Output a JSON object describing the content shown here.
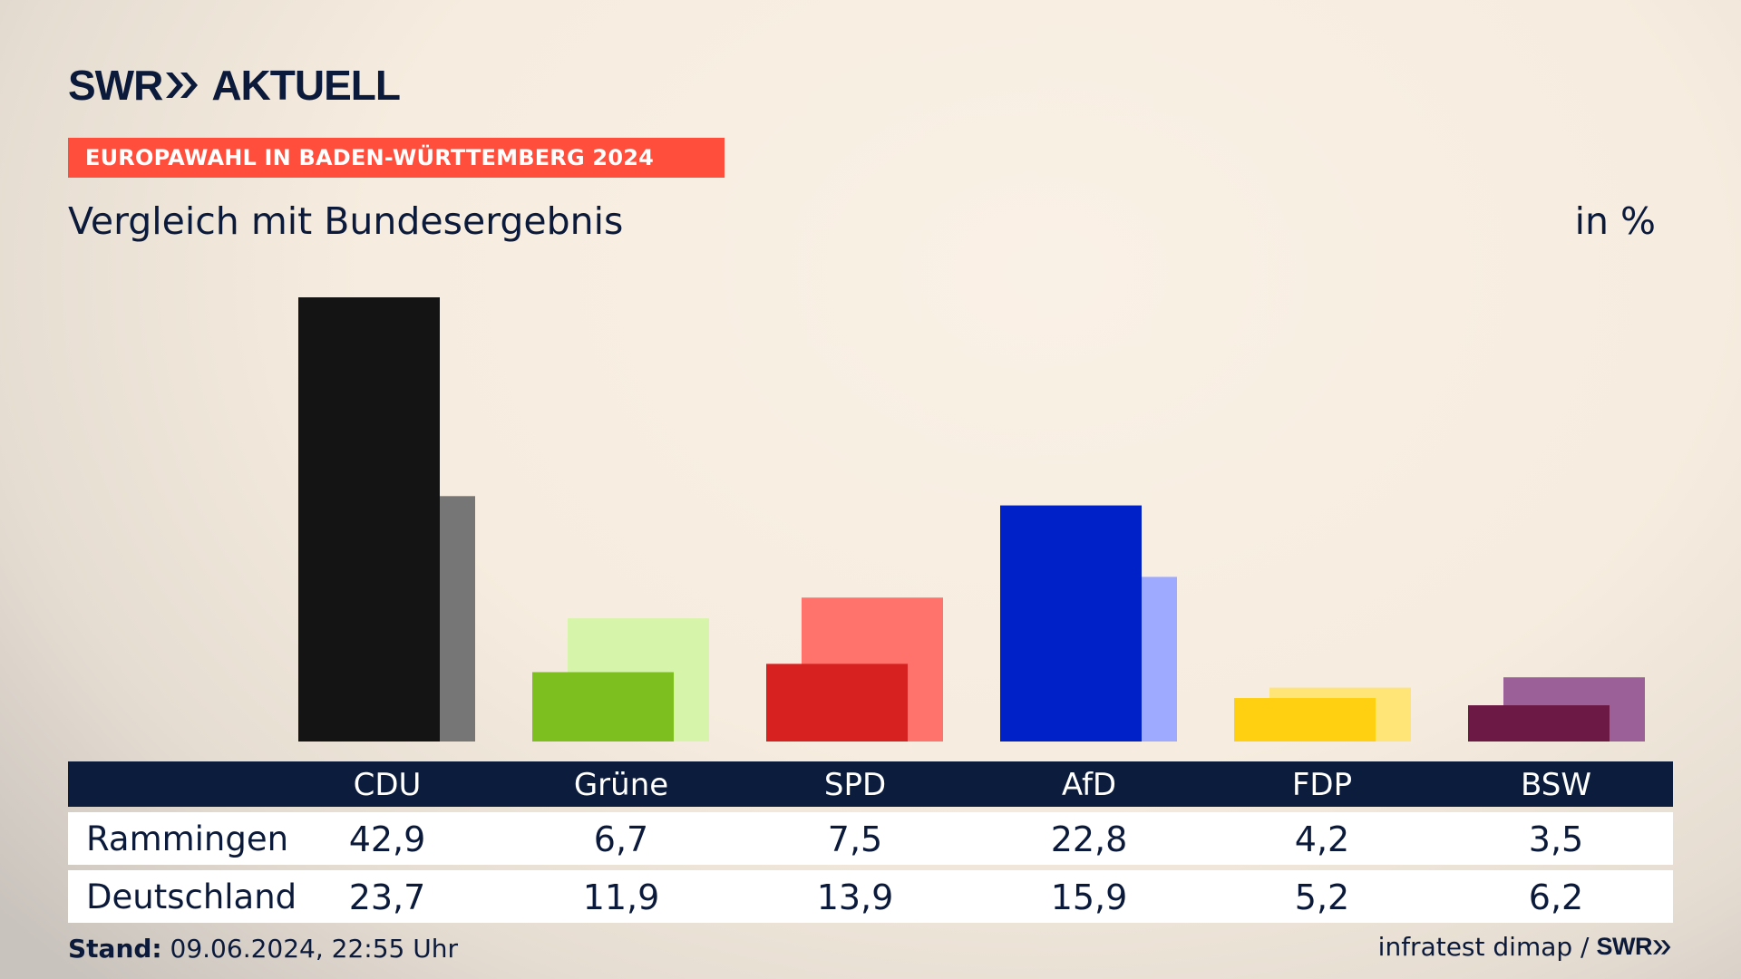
{
  "header": {
    "logo_text_left": "SWR",
    "logo_text_right": "AKTUELL",
    "badge": "EUROPAWAHL IN BADEN-WÜRTTEMBERG 2024",
    "subtitle": "Vergleich mit Bundesergebnis",
    "unit": "in %"
  },
  "chart_data": {
    "type": "bar",
    "categories": [
      "CDU",
      "Grüne",
      "SPD",
      "AfD",
      "FDP",
      "BSW"
    ],
    "series": [
      {
        "name": "Rammingen",
        "values": [
          42.9,
          6.7,
          7.5,
          22.8,
          4.2,
          3.5
        ]
      },
      {
        "name": "Deutschland",
        "values": [
          23.7,
          11.9,
          13.9,
          15.9,
          5.2,
          6.2
        ]
      }
    ],
    "value_labels": {
      "Rammingen": [
        "42,9",
        "6,7",
        "7,5",
        "22,8",
        "4,2",
        "3,5"
      ],
      "Deutschland": [
        "23,7",
        "11,9",
        "13,9",
        "15,9",
        "5,2",
        "6,2"
      ]
    },
    "colors": {
      "primary": [
        "#141414",
        "#7cbf1e",
        "#d72020",
        "#0021c8",
        "#ffd012",
        "#6c1a45"
      ],
      "secondary": [
        "#767676",
        "#d7f5aa",
        "#ff736c",
        "#9eaaff",
        "#ffe477",
        "#9c6099"
      ]
    },
    "ylim": [
      0,
      42.9
    ],
    "grid": false,
    "legend": "table-below"
  },
  "footer": {
    "stand_label": "Stand:",
    "stand_value": "09.06.2024, 22:55 Uhr",
    "source": "infratest dimap /",
    "source_logo": "SWR"
  }
}
